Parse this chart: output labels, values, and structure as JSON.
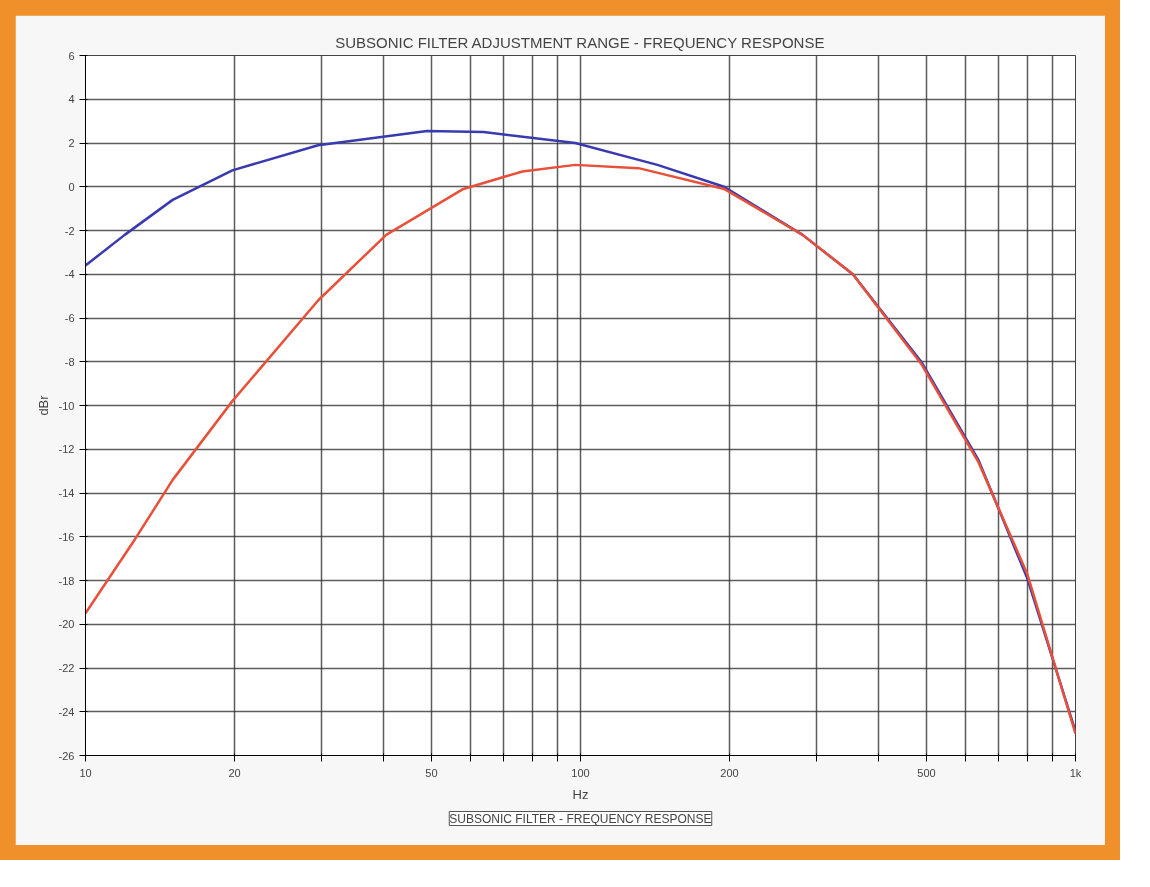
{
  "chart_data": {
    "type": "line",
    "title": "SUBSONIC FILTER ADJUSTMENT RANGE - FREQUENCY RESPONSE",
    "xlabel": "Hz",
    "ylabel": "dBr",
    "log": "x",
    "grid": true,
    "marker": "none",
    "line_style": "solid",
    "xlim": [
      10,
      1000
    ],
    "ylim": [
      -26,
      6
    ],
    "xticks": [
      10,
      20,
      {
        "value": 30,
        "label": null
      },
      {
        "value": 40,
        "label": null
      },
      50,
      {
        "value": 60,
        "label": null
      },
      {
        "value": 70,
        "label": null
      },
      {
        "value": 80,
        "label": null
      },
      {
        "value": 90,
        "label": null
      },
      100,
      200,
      {
        "value": 300,
        "label": null
      },
      {
        "value": 400,
        "label": null
      },
      500,
      {
        "value": 600,
        "label": null
      },
      {
        "value": 700,
        "label": null
      },
      {
        "value": 800,
        "label": null
      },
      {
        "value": 900,
        "label": null
      },
      {
        "value": 1000,
        "label": "1k"
      }
    ],
    "yticks": [
      6,
      4,
      2,
      0,
      -2,
      -4,
      -6,
      -8,
      -10,
      -12,
      -14,
      -16,
      -18,
      -20,
      -22,
      -24,
      -26
    ],
    "series": [
      {
        "color": "#3a3ab0",
        "x": [
          10,
          12,
          15,
          19.8,
          29.5,
          49,
          63.7,
          97.6,
          143,
          195,
          281,
          355,
          488,
          637,
          799,
          1000
        ],
        "values": [
          -3.6,
          -2.2,
          -0.6,
          0.75,
          1.9,
          2.55,
          2.5,
          2.0,
          1.0,
          0.0,
          -2.2,
          -4.0,
          -8.0,
          -12.5,
          -17.9,
          -24.9
        ]
      },
      {
        "color": "#e8503a",
        "x": [
          10,
          12.6,
          15,
          19.8,
          29.5,
          40.5,
          58,
          76.3,
          97.6,
          131,
          195,
          281,
          355,
          488,
          637,
          799,
          1000
        ],
        "values": [
          -19.5,
          -16.1,
          -13.4,
          -9.8,
          -5.2,
          -2.2,
          -0.1,
          0.7,
          1.0,
          0.85,
          -0.1,
          -2.2,
          -4.0,
          -8.1,
          -12.6,
          -17.7,
          -25.0
        ]
      }
    ],
    "annotations": [
      "SUBSONIC FILTER - FREQUENCY RESPONSE"
    ]
  }
}
